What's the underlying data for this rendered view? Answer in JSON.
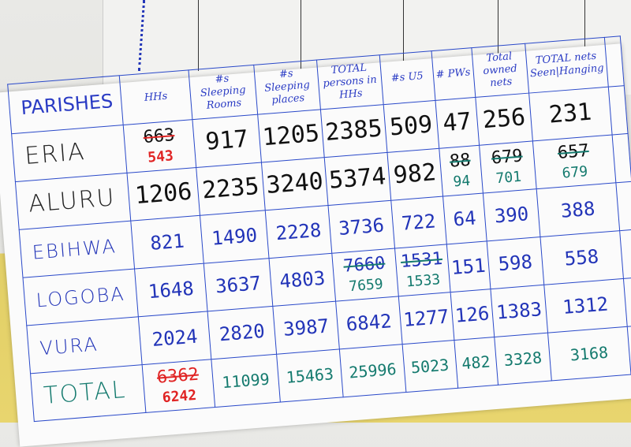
{
  "headers": [
    "PARISHES",
    "HHs",
    "#s Sleeping Rooms",
    "#s Sleeping places",
    "TOTAL persons in HHs",
    "#s U5",
    "# PWs",
    "Total owned nets",
    "TOTAL nets Seen|Hanging"
  ],
  "rows": [
    {
      "parish": "ERIA",
      "cells": [
        {
          "old": "663",
          "new": "543",
          "style": "red"
        },
        "917",
        "1205",
        "2385",
        "509",
        "47",
        "256",
        "231"
      ]
    },
    {
      "parish": "ALURU",
      "cells": [
        "1206",
        "2235",
        "3240",
        "5374",
        "982",
        {
          "old": "88",
          "new": "94"
        },
        {
          "old": "679",
          "new": "701"
        },
        {
          "old": "657",
          "new": "679"
        }
      ]
    },
    {
      "parish": "EBIHWA",
      "cells": [
        "821",
        "1490",
        "2228",
        "3736",
        "722",
        "64",
        "390",
        "388"
      ]
    },
    {
      "parish": "LOGOBA",
      "cells": [
        "1648",
        "3637",
        "4803",
        {
          "old": "7660",
          "new": "7659"
        },
        {
          "old": "1531",
          "new": "1533"
        },
        "151",
        "598",
        "558"
      ]
    },
    {
      "parish": "VURA",
      "cells": [
        "2024",
        "2820",
        "3987",
        "6842",
        "1277",
        "126",
        "1383",
        "1312"
      ]
    },
    {
      "parish": "TOTAL",
      "cells": [
        {
          "old": "6362",
          "new": "6242",
          "style": "red"
        },
        "11099",
        "15463",
        "25996",
        "5023",
        "482",
        "3328",
        "3168"
      ]
    }
  ],
  "colors": {
    "ink_blue": "#2a3bc4",
    "ink_black": "#111111",
    "ink_red": "#e02424",
    "ink_teal": "#147a6e",
    "wall_yellow": "#e6d36a"
  }
}
